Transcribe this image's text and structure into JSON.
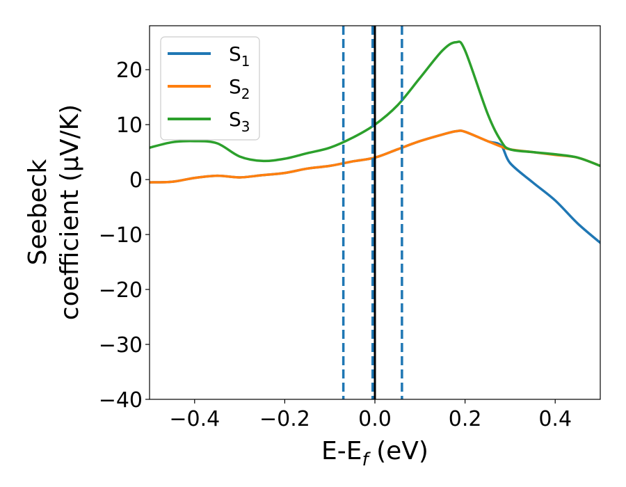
{
  "chart_data": {
    "type": "line",
    "xlabel": "E-E",
    "xlabel_sub": "f",
    "xlabel_unit": " (eV)",
    "ylabel_line1": "Seebeck",
    "ylabel_line2": "coefficient  (μV/K)",
    "xlim": [
      -0.5,
      0.5
    ],
    "ylim": [
      -40,
      28
    ],
    "xticks": [
      -0.4,
      -0.2,
      0.0,
      0.2,
      0.4
    ],
    "xtick_labels": [
      "−0.4",
      "−0.2",
      "0.0",
      "0.2",
      "0.4"
    ],
    "yticks": [
      -40,
      -30,
      -20,
      -10,
      0,
      10,
      20
    ],
    "ytick_labels": [
      "−40",
      "−30",
      "−20",
      "−10",
      "0",
      "10",
      "20"
    ],
    "grid": false,
    "legend_position": "top-left",
    "vlines": [
      {
        "x": -0.07,
        "style": "dashed",
        "color": "#1f77b4"
      },
      {
        "x": -0.005,
        "style": "dashed",
        "color": "#1f77b4"
      },
      {
        "x": 0.06,
        "style": "dashed",
        "color": "#1f77b4"
      },
      {
        "x": 0.0,
        "style": "solid",
        "color": "#000000"
      }
    ],
    "series": [
      {
        "name": "S",
        "sub": "1",
        "color": "#1f77b4",
        "x": [
          -0.5,
          -0.45,
          -0.4,
          -0.35,
          -0.3,
          -0.25,
          -0.2,
          -0.15,
          -0.1,
          -0.05,
          0.0,
          0.05,
          0.1,
          0.15,
          0.18,
          0.2,
          0.25,
          0.28,
          0.3,
          0.35,
          0.4,
          0.45,
          0.5
        ],
        "y": [
          -0.5,
          -0.4,
          0.3,
          0.7,
          0.4,
          0.8,
          1.2,
          2.0,
          2.5,
          3.3,
          4.0,
          5.5,
          7.0,
          8.2,
          8.8,
          8.7,
          7.0,
          6.2,
          3.0,
          -0.5,
          -3.8,
          -8.0,
          -11.5
        ]
      },
      {
        "name": "S",
        "sub": "2",
        "color": "#ff7f0e",
        "x": [
          -0.5,
          -0.45,
          -0.4,
          -0.35,
          -0.3,
          -0.25,
          -0.2,
          -0.15,
          -0.1,
          -0.05,
          0.0,
          0.05,
          0.1,
          0.15,
          0.18,
          0.2,
          0.25,
          0.28,
          0.3,
          0.35,
          0.4,
          0.45,
          0.5
        ],
        "y": [
          -0.5,
          -0.4,
          0.3,
          0.7,
          0.4,
          0.8,
          1.2,
          2.0,
          2.5,
          3.3,
          4.0,
          5.5,
          7.0,
          8.2,
          8.8,
          8.7,
          7.0,
          6.0,
          5.5,
          5.0,
          4.5,
          4.0,
          2.5
        ]
      },
      {
        "name": "S",
        "sub": "3",
        "color": "#2ca02c",
        "x": [
          -0.5,
          -0.45,
          -0.4,
          -0.35,
          -0.3,
          -0.25,
          -0.2,
          -0.15,
          -0.1,
          -0.05,
          0.0,
          0.05,
          0.1,
          0.15,
          0.18,
          0.2,
          0.25,
          0.28,
          0.3,
          0.35,
          0.4,
          0.45,
          0.5
        ],
        "y": [
          5.8,
          6.8,
          7.0,
          6.6,
          4.2,
          3.4,
          3.8,
          4.8,
          5.8,
          7.6,
          10.0,
          13.5,
          18.5,
          23.5,
          25.0,
          23.5,
          12.0,
          7.0,
          5.5,
          5.0,
          4.6,
          4.0,
          2.5
        ]
      }
    ]
  }
}
